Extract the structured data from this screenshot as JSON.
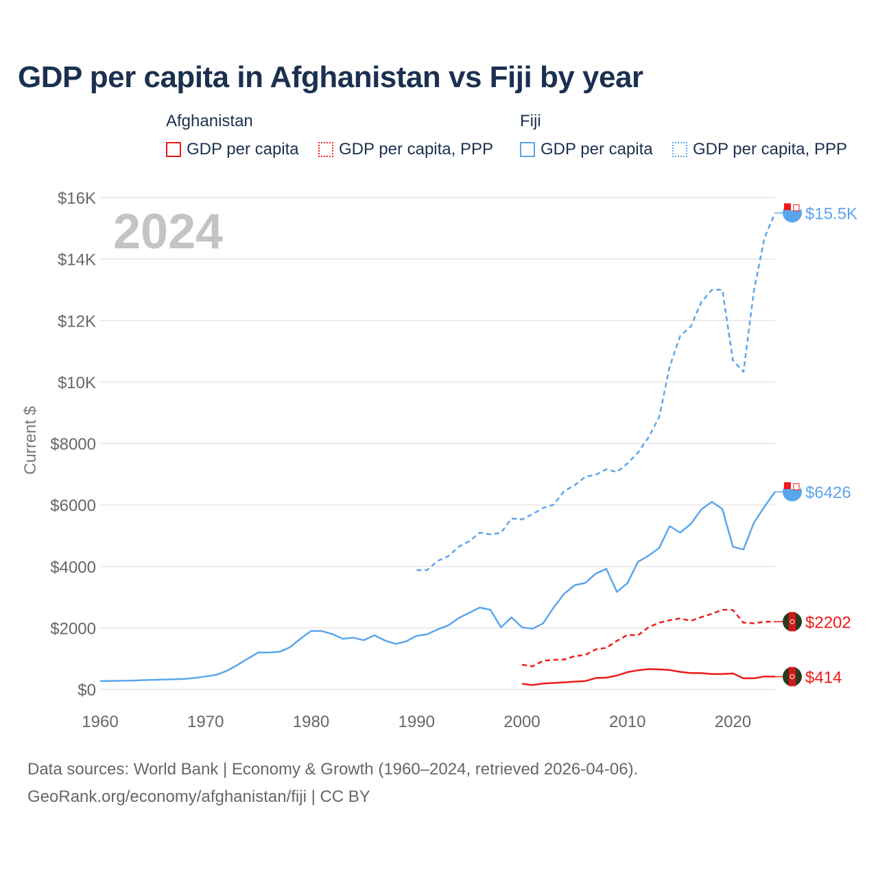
{
  "title": "GDP per capita in Afghanistan vs Fiji by year",
  "legend": {
    "groups": [
      {
        "name": "Afghanistan",
        "color": "#f01818",
        "items": [
          "GDP per capita",
          "GDP per capita, PPP"
        ]
      },
      {
        "name": "Fiji",
        "color": "#5aa5ec",
        "items": [
          "GDP per capita",
          "GDP per capita, PPP"
        ]
      }
    ]
  },
  "year_watermark": "2024",
  "footer": {
    "line1": "Data sources: World Bank | Economy & Growth (1960–2024, retrieved 2026-04-06).",
    "line2": "GeoRank.org/economy/afghanistan/fiji | CC BY"
  },
  "chart_data": {
    "type": "line",
    "title": "GDP per capita in Afghanistan vs Fiji by year",
    "xlabel": "",
    "ylabel": "Current $",
    "xlim": [
      1960,
      2024
    ],
    "ylim": [
      0,
      16000
    ],
    "x_ticks": [
      1960,
      1970,
      1980,
      1990,
      2000,
      2010,
      2020
    ],
    "x_tick_labels": [
      "1960",
      "1970",
      "1980",
      "1990",
      "2000",
      "2010",
      "2020"
    ],
    "y_ticks": [
      0,
      2000,
      4000,
      6000,
      8000,
      10000,
      12000,
      14000,
      16000
    ],
    "y_tick_labels": [
      "$0",
      "$2000",
      "$4000",
      "$6000",
      "$8000",
      "$10K",
      "$12K",
      "$14K",
      "$16K"
    ],
    "grid": true,
    "legend_position": "top",
    "series": [
      {
        "name": "Fiji GDP per capita",
        "country": "Fiji",
        "color": "#5aa5ec",
        "dash": false,
        "start": 1960,
        "end_label": "$6426",
        "values": [
          270,
          275,
          280,
          285,
          300,
          310,
          320,
          330,
          340,
          370,
          420,
          470,
          600,
          790,
          1000,
          1200,
          1200,
          1220,
          1370,
          1650,
          1900,
          1900,
          1800,
          1650,
          1680,
          1600,
          1760,
          1590,
          1480,
          1560,
          1740,
          1790,
          1950,
          2080,
          2320,
          2490,
          2660,
          2590,
          2020,
          2340,
          2020,
          1970,
          2150,
          2660,
          3110,
          3390,
          3460,
          3770,
          3920,
          3170,
          3460,
          4150,
          4350,
          4600,
          5310,
          5100,
          5380,
          5850,
          6100,
          5870,
          4640,
          4550,
          5430,
          5950,
          6426
        ]
      },
      {
        "name": "Fiji GDP per capita, PPP",
        "country": "Fiji",
        "color": "#5aa5ec",
        "dash": true,
        "start": 1990,
        "end_label": "$15.5K",
        "values": [
          3880,
          3880,
          4180,
          4330,
          4640,
          4820,
          5100,
          5040,
          5090,
          5560,
          5530,
          5700,
          5900,
          6010,
          6450,
          6640,
          6920,
          6980,
          7160,
          7070,
          7350,
          7700,
          8200,
          8850,
          10500,
          11500,
          11800,
          12600,
          13000,
          13000,
          10700,
          10330,
          13000,
          14700,
          15500
        ]
      },
      {
        "name": "Afghanistan GDP per capita",
        "country": "Afghanistan",
        "color": "#f01818",
        "dash": false,
        "start": 2000,
        "end_label": "$414",
        "values": [
          180,
          140,
          190,
          210,
          230,
          250,
          270,
          370,
          380,
          450,
          560,
          620,
          660,
          650,
          630,
          570,
          530,
          530,
          500,
          500,
          520,
          360,
          360,
          420,
          414
        ]
      },
      {
        "name": "Afghanistan GDP per capita, PPP",
        "country": "Afghanistan",
        "color": "#f01818",
        "dash": true,
        "start": 2000,
        "end_label": "$2202",
        "values": [
          800,
          750,
          930,
          960,
          970,
          1080,
          1120,
          1300,
          1350,
          1580,
          1770,
          1760,
          2020,
          2170,
          2250,
          2310,
          2230,
          2350,
          2460,
          2590,
          2580,
          2170,
          2150,
          2200,
          2202
        ]
      }
    ]
  }
}
